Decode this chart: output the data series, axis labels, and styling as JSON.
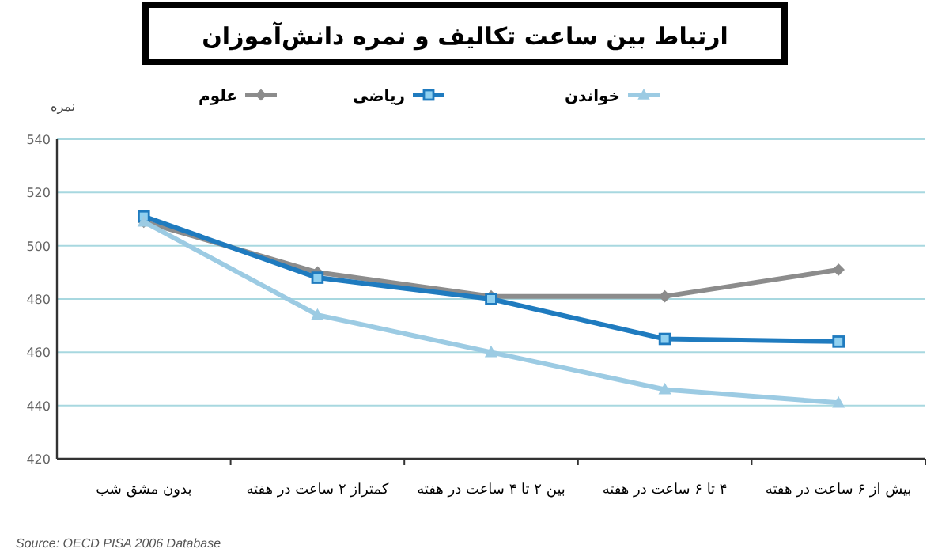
{
  "chart_data": {
    "type": "line",
    "title": "ارتباط بین ساعت تکالیف و نمره دانش‌آموزان",
    "ylabel": "نمره",
    "categories": [
      "بدون مشق شب",
      "کمتراز ۲ ساعت در هفته",
      "بین ۲ تا ۴ ساعت در هفته",
      "۴ تا ۶ ساعت در هفته",
      "بیش از ۶ ساعت در هفته"
    ],
    "series": [
      {
        "name": "علوم",
        "color": "#8c8c8c",
        "marker": "diamond",
        "values": [
          509,
          490,
          481,
          481,
          491
        ]
      },
      {
        "name": "ریاضی",
        "color": "#1f7bbf",
        "marker": "square",
        "values": [
          511,
          488,
          480,
          465,
          464
        ]
      },
      {
        "name": "خواندن",
        "color": "#9ccbe3",
        "marker": "triangle",
        "values": [
          509,
          474,
          460,
          446,
          441
        ]
      }
    ],
    "ylim": [
      420,
      540
    ],
    "yticks": [
      420,
      440,
      460,
      480,
      500,
      520,
      540
    ],
    "grid": "y",
    "legend": "top",
    "annotations": [
      "Source: OECD PISA 2006 Database"
    ]
  }
}
